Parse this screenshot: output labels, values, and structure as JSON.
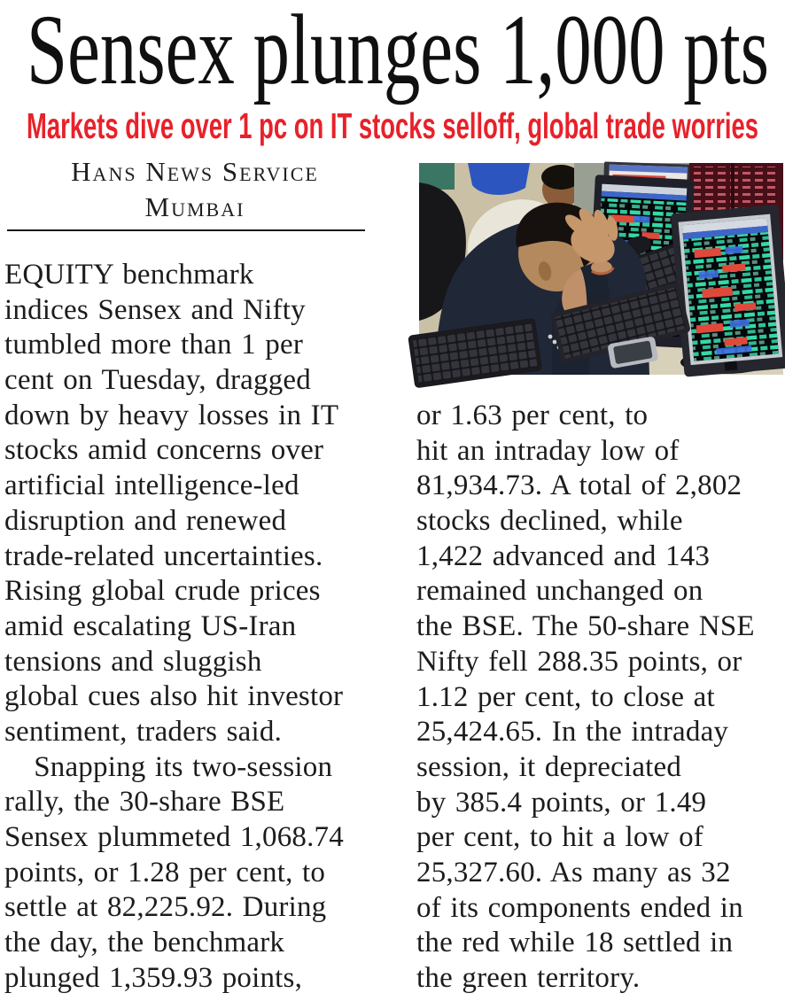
{
  "article": {
    "headline": "Sensex plunges 1,000 pts",
    "subheadline": "Markets dive over 1 pc on IT stocks selloff, global trade worries",
    "byline": {
      "agency": "Hans News Service",
      "location": "Mumbai"
    },
    "body": {
      "columns": [
        {
          "lines": [
            "EQUITY benchmark",
            "indices Sensex and Nifty",
            "tumbled more than 1 per",
            "cent on Tuesday, dragged",
            "down by heavy losses in IT",
            "stocks amid concerns over",
            "artificial intelligence-led",
            "disruption and renewed",
            "trade-related uncertainties.",
            "Rising global crude prices",
            "amid escalating US-Iran",
            "tensions and sluggish",
            "global cues also hit investor",
            "sentiment, traders said.",
            " Snapping its two-session",
            "rally, the 30-share BSE",
            "Sensex plummeted 1,068.74",
            "points, or 1.28 per cent, to",
            "settle at 82,225.92. During",
            "the day, the benchmark",
            "plunged 1,359.93 points,"
          ]
        },
        {
          "lines": [
            "or 1.63 per cent, to",
            "hit an intraday low of",
            "81,934.73. A total of 2,802",
            "stocks declined, while",
            "1,422 advanced and 143",
            "remained unchanged on",
            "the BSE. The 50-share NSE",
            "Nifty fell 288.35 points, or",
            "1.12 per cent, to close at",
            "25,424.65. In the intraday",
            "session, it depreciated",
            "by 385.4 points, or 1.49",
            "per cent, to hit a low of",
            "25,327.60. As many as 32",
            "of its components ended in",
            "the red while 18 settled in",
            "the green territory."
          ]
        }
      ]
    }
  },
  "colors": {
    "headline": "#101010",
    "subheadline": "#e8212a",
    "body": "#1c1c1c",
    "rule": "#1a1a1a",
    "photo_wall_beige": "#c9c0a5",
    "photo_shirt_navy": "#202838",
    "photo_skin": "#b4895e",
    "photo_screen_green": "#35d9a6",
    "photo_screen_red": "#e0493a",
    "photo_screen_blue": "#3f6fe0",
    "photo_board_maroon": "#471019"
  }
}
